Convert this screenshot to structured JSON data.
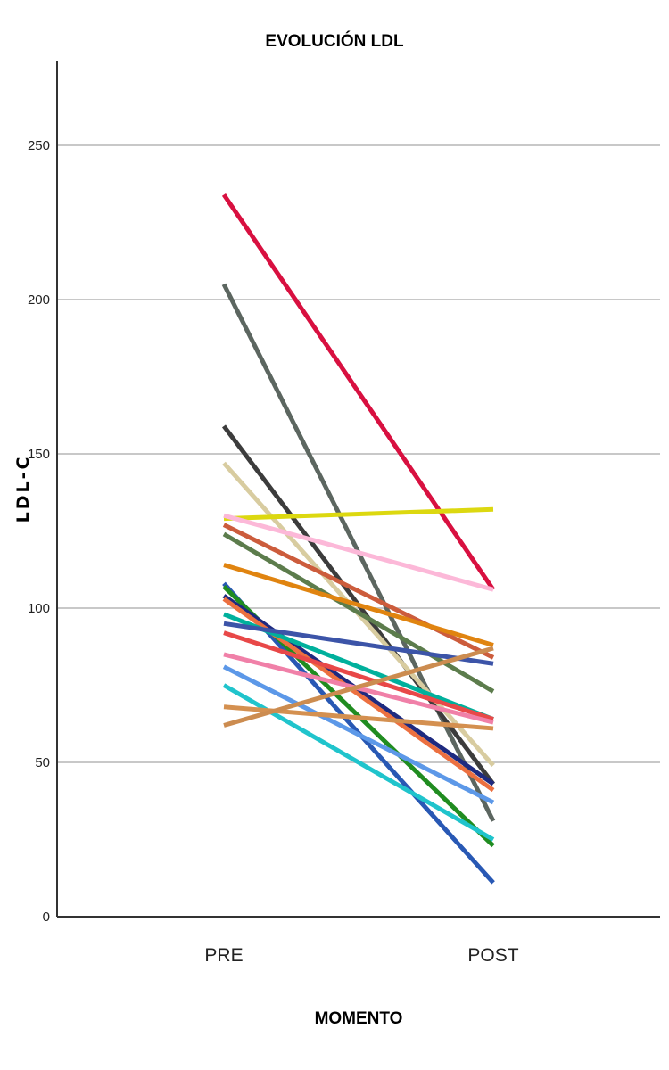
{
  "chart_data": {
    "type": "line",
    "title": "EVOLUCIÓN LDL",
    "xlabel": "MOMENTO",
    "ylabel": "LDL-C",
    "categories": [
      "PRE",
      "POST"
    ],
    "ylim": [
      0,
      270
    ],
    "yticks": [
      0,
      50,
      100,
      150,
      200,
      250
    ],
    "grid": true,
    "series": [
      {
        "color": "#d81040",
        "values": [
          234,
          106
        ]
      },
      {
        "color": "#5c6660",
        "values": [
          205,
          31
        ]
      },
      {
        "color": "#3c3c3c",
        "values": [
          159,
          43
        ]
      },
      {
        "color": "#d8cca0",
        "values": [
          147,
          49
        ]
      },
      {
        "color": "#dcd810",
        "values": [
          129,
          132
        ]
      },
      {
        "color": "#fcb8d8",
        "values": [
          130,
          106
        ]
      },
      {
        "color": "#cc5c3c",
        "values": [
          127,
          84
        ]
      },
      {
        "color": "#5c7c4c",
        "values": [
          124,
          73
        ]
      },
      {
        "color": "#e08410",
        "values": [
          114,
          88
        ]
      },
      {
        "color": "#2858b4",
        "values": [
          108,
          11
        ]
      },
      {
        "color": "#208c20",
        "values": [
          107,
          23
        ]
      },
      {
        "color": "#1e2a80",
        "values": [
          104,
          43
        ]
      },
      {
        "color": "#ec7040",
        "values": [
          103,
          41
        ]
      },
      {
        "color": "#00b09c",
        "values": [
          98,
          64
        ]
      },
      {
        "color": "#3c54a8",
        "values": [
          95,
          82
        ]
      },
      {
        "color": "#e84848",
        "values": [
          92,
          64
        ]
      },
      {
        "color": "#f080a8",
        "values": [
          85,
          63
        ]
      },
      {
        "color": "#5c98e8",
        "values": [
          81,
          37
        ]
      },
      {
        "color": "#20c4cc",
        "values": [
          75,
          25
        ]
      },
      {
        "color": "#d49050",
        "values": [
          68,
          61
        ]
      },
      {
        "color": "#cc8c50",
        "values": [
          62,
          87
        ]
      }
    ]
  }
}
